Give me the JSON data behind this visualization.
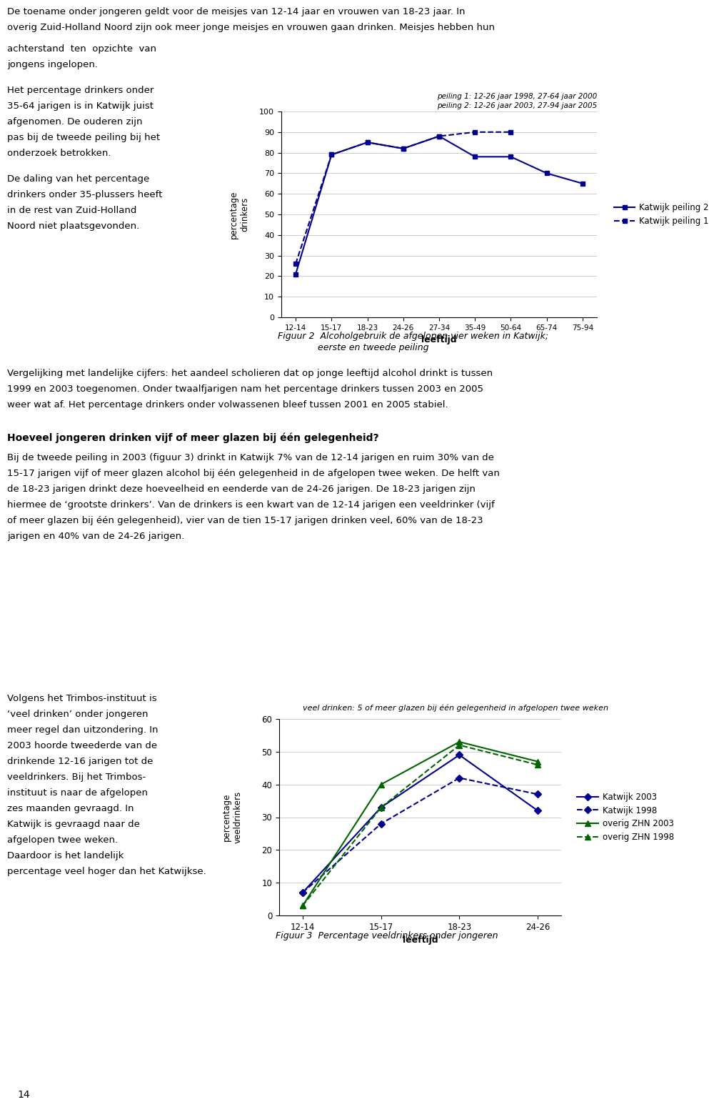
{
  "page_background": "#ffffff",
  "page_number": "14",
  "fig1_title_line1": "peiling 1: 12-26 jaar 1998, 27-64 jaar 2000",
  "fig1_title_line2": "peiling 2: 12-26 jaar 2003, 27-94 jaar 2005",
  "fig1_ylabel": "percentage\ndrinkers",
  "fig1_xlabel": "leeftijd",
  "fig1_caption_line1": "Figuur 2  Alcoholgebruik de afgelopen vier weken in Katwijk;",
  "fig1_caption_line2": "              eerste en tweede peiling",
  "fig1_xticks": [
    "12-14",
    "15-17",
    "18-23",
    "24-26",
    "27-34",
    "35-49",
    "50-64",
    "65-74",
    "75-94"
  ],
  "fig1_yticks": [
    0,
    10,
    20,
    30,
    40,
    50,
    60,
    70,
    80,
    90,
    100
  ],
  "fig1_ylim": [
    0,
    100
  ],
  "fig1_s1_label": "Katwijk peiling 2",
  "fig1_s1_values": [
    21,
    79,
    85,
    82,
    88,
    78,
    78,
    70,
    65
  ],
  "fig1_s1_color": "#00008B",
  "fig1_s1_marker": "s",
  "fig1_s2_label": "Katwijk peiling 1",
  "fig1_s2_values": [
    26,
    79,
    85,
    82,
    88,
    90,
    90,
    null,
    null
  ],
  "fig1_s2_color": "#00008B",
  "fig1_s2_marker": "s",
  "para_mid": "Vergelijking met landelijke cijfers: het aandeel scholieren dat op jonge leeftijd alcohol drinkt is tussen\n1999 en 2003 toegenomen. Onder twaalfjarigen nam het percentage drinkers tussen 2003 en 2005\nweer wat af. Het percentage drinkers onder volwassenen bleef tussen 2001 en 2005 stabiel.",
  "heading1": "Hoeveel jongeren drinken vijf of meer glazen bij één gelegenheid?",
  "para2_lines": [
    "Bij de tweede peiling in 2003 (figuur 3) drinkt in Katwijk 7% van de 12-14 jarigen en ruim 30% van de",
    "15-17 jarigen vijf of meer glazen alcohol bij één gelegenheid in de afgelopen twee weken. De helft van",
    "de 18-23 jarigen drinkt deze hoeveelheid en eenderde van de 24-26 jarigen. De 18-23 jarigen zijn",
    "hiermee de ‘grootste drinkers’. Van de drinkers is een kwart van de 12-14 jarigen een veeldrinker (vijf",
    "of meer glazen bij één gelegenheid), vier van de tien 15-17 jarigen drinken veel, 60% van de 18-23",
    "jarigen en 40% van de 24-26 jarigen."
  ],
  "left_col_lines": [
    "Volgens het Trimbos-instituut is",
    "‘veel drinken’ onder jongeren",
    "meer regel dan uitzondering. In",
    "2003 hoorde tweederde van de",
    "drinkende 12-16 jarigen tot de",
    "veeldrinkers. Bij het Trimbos-",
    "instituut is naar de afgelopen",
    "zes maanden gevraagd. In",
    "Katwijk is gevraagd naar de",
    "afgelopen twee weken.",
    "Daardoor is het landelijk",
    "percentage veel hoger dan het Katwijkse."
  ],
  "fig2_title": "veel drinken: 5 of meer glazen bij één gelegenheid in afgelopen twee weken",
  "fig2_ylabel": "percentage\nveeldrinkers",
  "fig2_xlabel": "leeftijd",
  "fig2_caption": "Figuur 3  Percentage veeldrinkers onder jongeren",
  "fig2_xticks": [
    "12-14",
    "15-17",
    "18-23",
    "24-26"
  ],
  "fig2_yticks": [
    0,
    10,
    20,
    30,
    40,
    50,
    60
  ],
  "fig2_ylim": [
    0,
    60
  ],
  "fig2_s1_label": "Katwijk 2003",
  "fig2_s1_values": [
    7,
    33,
    49,
    32
  ],
  "fig2_s1_color": "#00008B",
  "fig2_s1_ls": "solid",
  "fig2_s1_marker": "D",
  "fig2_s2_label": "Katwijk 1998",
  "fig2_s2_values": [
    7,
    28,
    42,
    37
  ],
  "fig2_s2_color": "#00008B",
  "fig2_s2_ls": "dashed",
  "fig2_s2_marker": "D",
  "fig2_s3_label": "overig ZHN 2003",
  "fig2_s3_values": [
    3,
    40,
    53,
    47
  ],
  "fig2_s3_color": "#006400",
  "fig2_s3_ls": "solid",
  "fig2_s3_marker": "^",
  "fig2_s4_label": "overig ZHN 1998",
  "fig2_s4_values": [
    3,
    33,
    52,
    46
  ],
  "fig2_s4_color": "#006400",
  "fig2_s4_ls": "dashed",
  "fig2_s4_marker": "^",
  "top_para_lines": [
    "De toename onder jongeren geldt voor de meisjes van 12-14 jaar en vrouwen van 18-23 jaar. In",
    "overig Zuid-Holland Noord zijn ook meer jonge meisjes en vrouwen gaan drinken. Meisjes hebben hun"
  ],
  "left_top_lines_1": [
    "achterstand  ten  opzichte  van",
    "jongens ingelopen."
  ],
  "left_top_lines_2": [
    "Het percentage drinkers onder",
    "35-64 jarigen is in Katwijk juist",
    "afgenomen. De ouderen zijn",
    "pas bij de tweede peiling bij het",
    "onderzoek betrokken."
  ],
  "left_top_lines_3": [
    "De daling van het percentage",
    "drinkers onder 35-plussers heeft",
    "in de rest van Zuid-Holland",
    "Noord niet plaatsgevonden."
  ]
}
